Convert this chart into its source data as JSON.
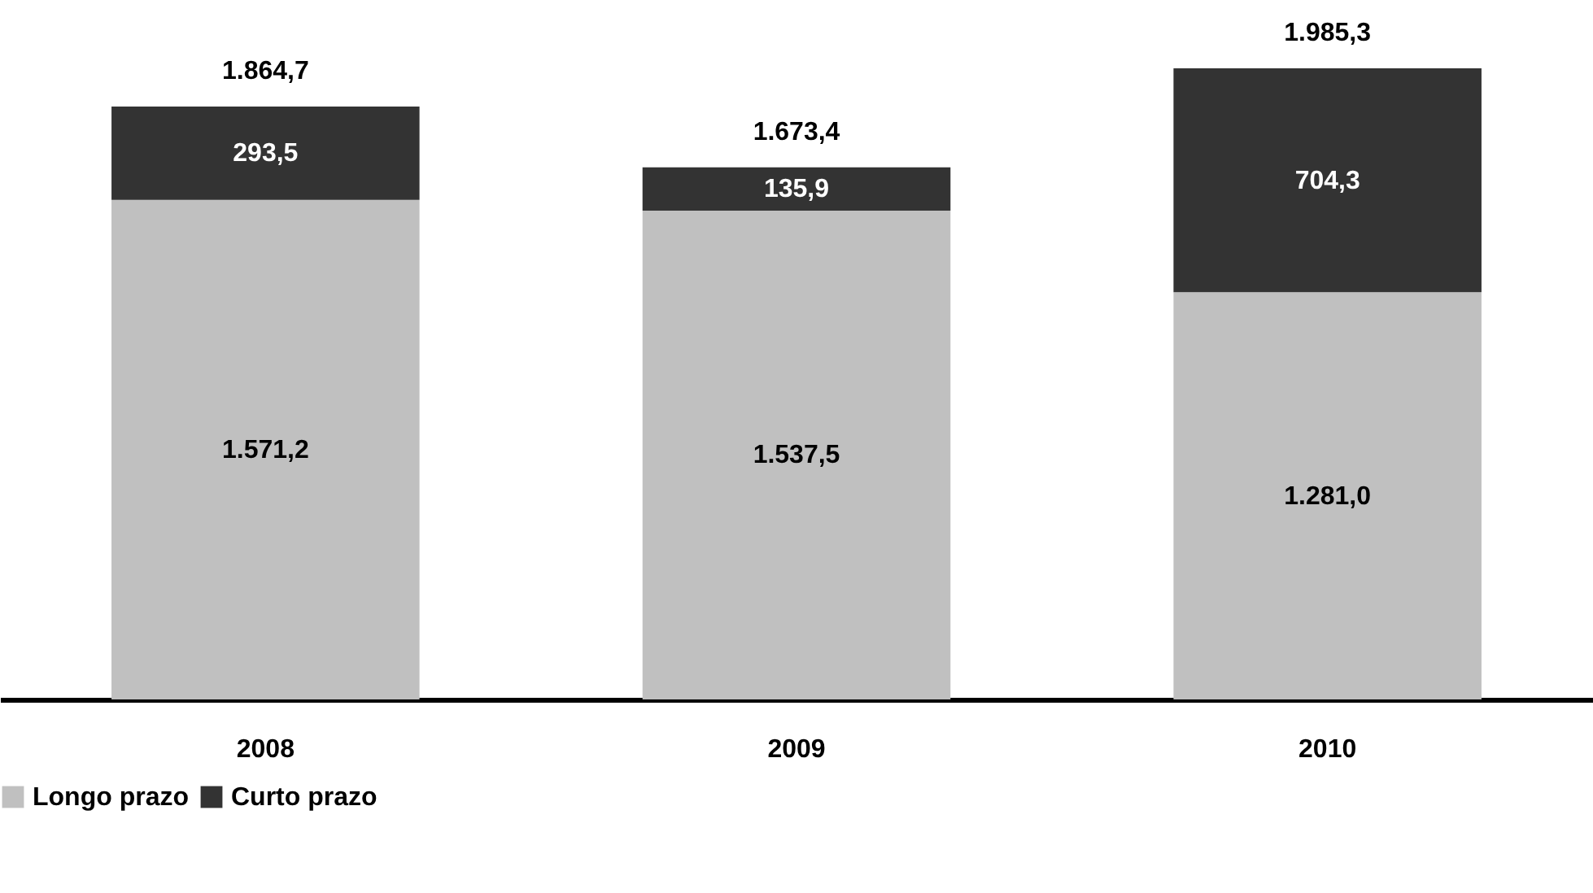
{
  "chart_data": {
    "type": "bar",
    "stacked": true,
    "categories": [
      "2008",
      "2009",
      "2010"
    ],
    "series": [
      {
        "name": "Longo prazo",
        "color": "#c0c0c0",
        "values": [
          1571.2,
          1537.5,
          1281.0
        ],
        "value_labels": [
          "1.571,2",
          "1.537,5",
          "1.281,0"
        ]
      },
      {
        "name": "Curto prazo",
        "color": "#333333",
        "values": [
          293.5,
          135.9,
          704.3
        ],
        "value_labels": [
          "293,5",
          "135,9",
          "704,3"
        ]
      }
    ],
    "totals": [
      "1.864,7",
      "1.673,4",
      "1.985,3"
    ],
    "ylim": [
      0,
      2200
    ],
    "tick_labels": "x",
    "grid": false,
    "legend": "bottom"
  }
}
